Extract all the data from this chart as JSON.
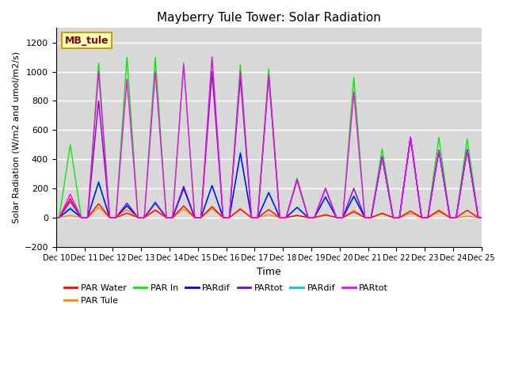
{
  "title": "Mayberry Tule Tower: Solar Radiation",
  "xlabel": "Time",
  "ylabel": "Solar Radiation (W/m2 and umol/m2/s)",
  "ylim": [
    -200,
    1300
  ],
  "yticks": [
    -200,
    0,
    200,
    400,
    600,
    800,
    1000,
    1200
  ],
  "background_color": "#ffffff",
  "plot_bg_color": "#d8d8d8",
  "grid_color": "#ffffff",
  "annotation_text": "MB_tule",
  "annotation_bg": "#ffffc0",
  "annotation_border": "#c8a000",
  "legend_entries": [
    {
      "label": "PAR Water",
      "color": "#ff0000"
    },
    {
      "label": "PAR Tule",
      "color": "#ff8800"
    },
    {
      "label": "PAR In",
      "color": "#00ee00"
    },
    {
      "label": "PARdif",
      "color": "#0000ff"
    },
    {
      "label": "PARtot",
      "color": "#8800cc"
    },
    {
      "label": "PARdif",
      "color": "#00cccc"
    },
    {
      "label": "PARtot",
      "color": "#ff00ff"
    }
  ],
  "series_colors": [
    "#ff0000",
    "#ff8800",
    "#00ee00",
    "#0000ff",
    "#8800cc",
    "#00cccc",
    "#ff00ff"
  ],
  "day_peaks": [
    {
      "day": 10,
      "values": [
        130,
        15,
        500,
        60,
        110,
        70,
        160
      ]
    },
    {
      "day": 11,
      "values": [
        95,
        70,
        1060,
        240,
        800,
        250,
        1000
      ]
    },
    {
      "day": 12,
      "values": [
        30,
        55,
        1100,
        80,
        100,
        90,
        950
      ]
    },
    {
      "day": 13,
      "values": [
        50,
        55,
        1100,
        100,
        100,
        110,
        1000
      ]
    },
    {
      "day": 14,
      "values": [
        80,
        60,
        1060,
        200,
        215,
        205,
        1050
      ]
    },
    {
      "day": 15,
      "values": [
        75,
        60,
        1100,
        220,
        1000,
        220,
        1100
      ]
    },
    {
      "day": 16,
      "values": [
        60,
        55,
        1050,
        440,
        960,
        450,
        1000
      ]
    },
    {
      "day": 17,
      "values": [
        55,
        20,
        1020,
        170,
        975,
        175,
        970
      ]
    },
    {
      "day": 18,
      "values": [
        15,
        15,
        270,
        70,
        260,
        70,
        255
      ]
    },
    {
      "day": 19,
      "values": [
        20,
        15,
        200,
        140,
        200,
        145,
        200
      ]
    },
    {
      "day": 20,
      "values": [
        40,
        50,
        960,
        145,
        200,
        150,
        860
      ]
    },
    {
      "day": 21,
      "values": [
        30,
        25,
        470,
        415,
        415,
        420,
        420
      ]
    },
    {
      "day": 22,
      "values": [
        45,
        30,
        550,
        550,
        550,
        550,
        550
      ]
    },
    {
      "day": 23,
      "values": [
        50,
        40,
        550,
        460,
        460,
        460,
        460
      ]
    },
    {
      "day": 24,
      "values": [
        50,
        10,
        540,
        465,
        465,
        465,
        460
      ]
    }
  ]
}
